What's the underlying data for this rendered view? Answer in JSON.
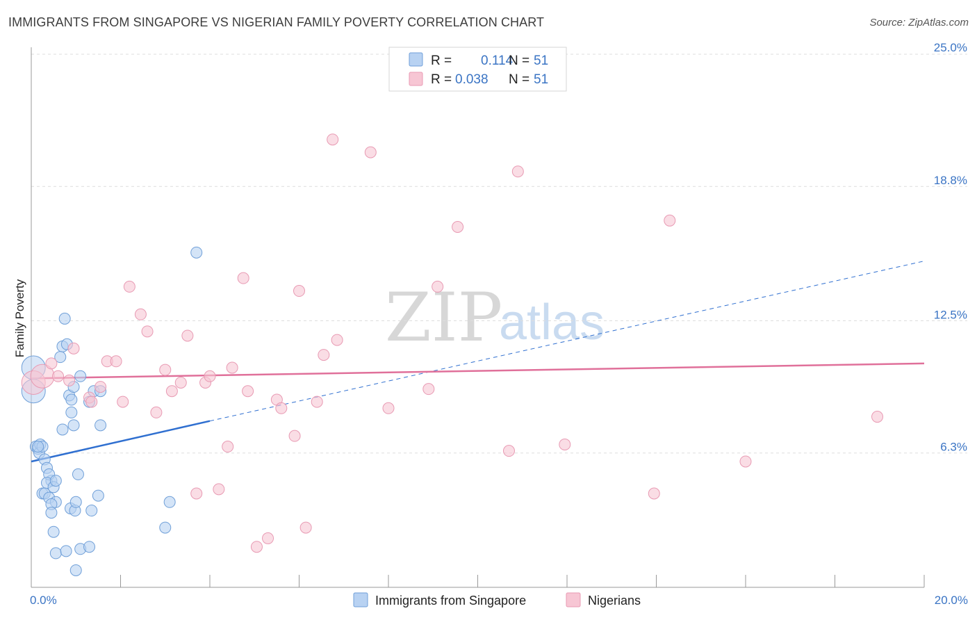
{
  "title": "IMMIGRANTS FROM SINGAPORE VS NIGERIAN FAMILY POVERTY CORRELATION CHART",
  "source": "Source: ZipAtlas.com",
  "watermark": {
    "zip": "ZIP",
    "atlas": "atlas"
  },
  "legend": {
    "r_label": "R =",
    "n_label": "N =",
    "series": [
      {
        "r": "0.114",
        "n": "51"
      },
      {
        "r": "0.038",
        "n": "51"
      }
    ]
  },
  "bottom_legend": [
    "Immigrants from Singapore",
    "Nigerians"
  ],
  "colors": {
    "blue_fill": "#b8d2f2",
    "blue_stroke": "#6f9fd8",
    "blue_line": "#2f6fd0",
    "pink_fill": "#f7c6d4",
    "pink_stroke": "#e89ab3",
    "pink_line": "#e0709a",
    "grid": "#dddddd",
    "axis_text": "#3a74c4"
  },
  "chart_data": {
    "type": "scatter",
    "title": "IMMIGRANTS FROM SINGAPORE VS NIGERIAN FAMILY POVERTY CORRELATION CHART",
    "xlabel": "",
    "ylabel": "Family Poverty",
    "xlim": [
      0,
      20
    ],
    "ylim": [
      0,
      25
    ],
    "x_tick_labels": [
      "0.0%",
      "20.0%"
    ],
    "y_ticks": [
      6.3,
      12.5,
      18.8,
      25.0
    ],
    "y_tick_labels": [
      "6.3%",
      "12.5%",
      "18.8%",
      "25.0%"
    ],
    "series": [
      {
        "name": "Immigrants from Singapore",
        "r": 0.114,
        "n": 51,
        "trend": {
          "x0": 0,
          "y0": 5.9,
          "x1": 4.0,
          "y1": 7.8,
          "dashed_to_x": 20.0,
          "dashed_to_y": 15.3
        },
        "points": [
          [
            0.05,
            10.3,
            "L"
          ],
          [
            0.05,
            9.2,
            "L"
          ],
          [
            0.1,
            6.6
          ],
          [
            0.15,
            6.5
          ],
          [
            0.2,
            6.7
          ],
          [
            0.18,
            6.3
          ],
          [
            0.25,
            6.6
          ],
          [
            0.3,
            6.0
          ],
          [
            0.35,
            5.6
          ],
          [
            0.45,
            5.0
          ],
          [
            0.4,
            5.3
          ],
          [
            0.35,
            4.9
          ],
          [
            0.25,
            4.4
          ],
          [
            0.3,
            4.4
          ],
          [
            0.4,
            4.2
          ],
          [
            0.5,
            4.7
          ],
          [
            0.55,
            5.0
          ],
          [
            0.55,
            4.0
          ],
          [
            0.45,
            3.9
          ],
          [
            0.45,
            3.5
          ],
          [
            0.5,
            2.6
          ],
          [
            0.55,
            1.6
          ],
          [
            0.7,
            11.3
          ],
          [
            0.8,
            11.4
          ],
          [
            0.75,
            12.6
          ],
          [
            0.65,
            10.8
          ],
          [
            0.7,
            7.4
          ],
          [
            0.85,
            9.0
          ],
          [
            0.9,
            8.2
          ],
          [
            0.9,
            8.8
          ],
          [
            0.95,
            9.4
          ],
          [
            0.88,
            3.7
          ],
          [
            0.95,
            7.6
          ],
          [
            0.98,
            3.6
          ],
          [
            1.0,
            4.0
          ],
          [
            1.0,
            0.8
          ],
          [
            0.78,
            1.7
          ],
          [
            1.05,
            5.3
          ],
          [
            1.1,
            1.8
          ],
          [
            1.1,
            9.9
          ],
          [
            1.3,
            1.9
          ],
          [
            1.35,
            3.6
          ],
          [
            1.5,
            4.3
          ],
          [
            1.55,
            7.6
          ],
          [
            1.4,
            9.2
          ],
          [
            1.3,
            8.7
          ],
          [
            1.55,
            9.2
          ],
          [
            3.1,
            4.0
          ],
          [
            3.0,
            2.8
          ],
          [
            3.7,
            15.7
          ],
          [
            0.15,
            6.6
          ]
        ]
      },
      {
        "name": "Nigerians",
        "r": 0.038,
        "n": 51,
        "trend": {
          "x0": 0,
          "y0": 9.8,
          "x1": 20.0,
          "y1": 10.5
        },
        "points": [
          [
            0.05,
            9.6,
            "L"
          ],
          [
            0.25,
            9.9,
            "L"
          ],
          [
            0.45,
            10.5
          ],
          [
            0.6,
            9.9
          ],
          [
            0.85,
            9.7
          ],
          [
            0.95,
            11.2
          ],
          [
            1.3,
            8.9
          ],
          [
            1.35,
            8.7
          ],
          [
            1.55,
            9.4
          ],
          [
            1.7,
            10.6
          ],
          [
            1.9,
            10.6
          ],
          [
            2.05,
            8.7
          ],
          [
            2.2,
            14.1
          ],
          [
            2.45,
            12.8
          ],
          [
            2.6,
            12.0
          ],
          [
            2.8,
            8.2
          ],
          [
            3.0,
            10.2
          ],
          [
            3.15,
            9.2
          ],
          [
            3.35,
            9.6
          ],
          [
            3.5,
            11.8
          ],
          [
            3.7,
            4.4
          ],
          [
            3.9,
            9.6
          ],
          [
            4.0,
            9.9
          ],
          [
            4.2,
            4.6
          ],
          [
            4.4,
            6.6
          ],
          [
            4.5,
            10.3
          ],
          [
            4.75,
            14.5
          ],
          [
            4.85,
            9.2
          ],
          [
            5.05,
            1.9
          ],
          [
            5.3,
            2.3
          ],
          [
            5.5,
            8.8
          ],
          [
            5.6,
            8.4
          ],
          [
            5.9,
            7.1
          ],
          [
            6.0,
            13.9
          ],
          [
            6.15,
            2.8
          ],
          [
            6.4,
            8.7
          ],
          [
            6.55,
            10.9
          ],
          [
            6.75,
            21.0
          ],
          [
            6.85,
            11.6
          ],
          [
            7.6,
            20.4
          ],
          [
            8.0,
            8.4
          ],
          [
            8.9,
            9.3
          ],
          [
            9.1,
            14.1
          ],
          [
            9.55,
            16.9
          ],
          [
            10.7,
            6.4
          ],
          [
            10.9,
            19.5
          ],
          [
            11.95,
            6.7
          ],
          [
            13.95,
            4.4
          ],
          [
            14.3,
            17.2
          ],
          [
            16.0,
            5.9
          ],
          [
            18.95,
            8.0
          ]
        ]
      }
    ]
  }
}
